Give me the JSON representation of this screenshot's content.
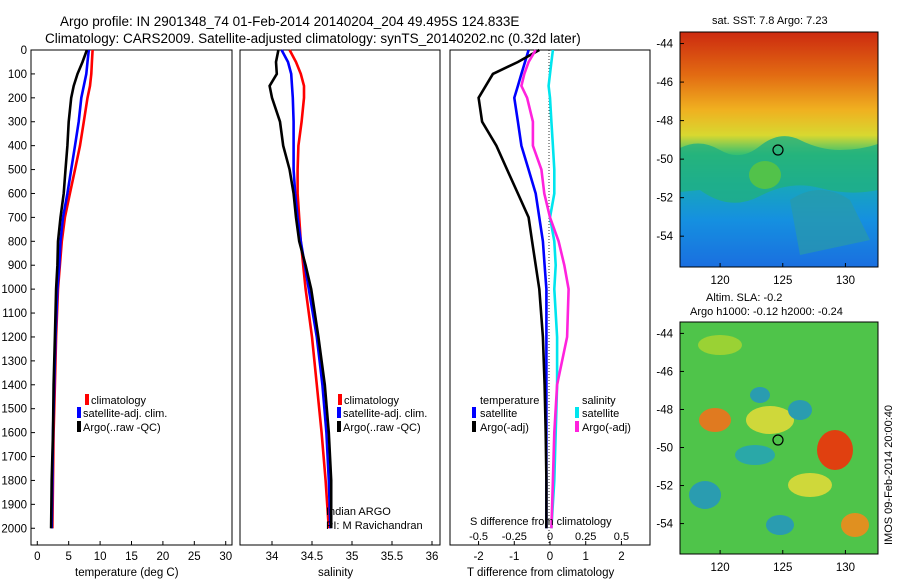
{
  "title_line1": "Argo profile: IN 2901348_74 01-Feb-2014 20140204_204 49.495S 124.833E",
  "title_line2": "Climatology: CARS2009. Satellite-adjusted climatology: synTS_20140202.nc (0.32d later)",
  "colors": {
    "climatology": "#ff0000",
    "satellite": "#0000ff",
    "argo": "#000000",
    "sat_diff_s": "#00e5ee",
    "argo_diff_s": "#ff22dd"
  },
  "chart_data": [
    {
      "type": "line",
      "xlabel": "temperature (deg C)",
      "xlim": [
        -1,
        31
      ],
      "xticks": [
        "0",
        "5",
        "10",
        "15",
        "20",
        "25",
        "30"
      ],
      "ylim": [
        0,
        2070
      ],
      "yticks": [
        "0",
        "100",
        "200",
        "300",
        "400",
        "500",
        "600",
        "700",
        "800",
        "900",
        "1000",
        "1100",
        "1200",
        "1300",
        "1400",
        "1500",
        "1600",
        "1700",
        "1800",
        "1900",
        "2000"
      ],
      "legend": [
        "climatology",
        "satellite-adj. clim.",
        "Argo(..raw -QC)"
      ],
      "depth": [
        0,
        50,
        100,
        150,
        200,
        300,
        400,
        500,
        600,
        700,
        800,
        900,
        1000,
        1200,
        1400,
        1600,
        1800,
        2000
      ],
      "series": [
        {
          "name": "climatology",
          "values": [
            8.8,
            8.7,
            8.6,
            8.4,
            8.0,
            7.4,
            6.8,
            6.0,
            5.2,
            4.4,
            3.9,
            3.6,
            3.3,
            3.0,
            2.8,
            2.6,
            2.5,
            2.4
          ]
        },
        {
          "name": "satellite-adj. clim.",
          "values": [
            8.2,
            8.0,
            7.8,
            7.4,
            7.0,
            6.6,
            6.0,
            5.4,
            4.8,
            4.1,
            3.7,
            3.5,
            3.2,
            2.9,
            2.7,
            2.5,
            2.4,
            2.3
          ]
        },
        {
          "name": "Argo(..raw -QC)",
          "values": [
            7.9,
            7.2,
            6.4,
            5.8,
            5.4,
            5.0,
            4.8,
            4.5,
            4.2,
            3.7,
            3.3,
            3.2,
            3.0,
            2.8,
            2.6,
            2.5,
            2.3,
            2.2
          ]
        }
      ]
    },
    {
      "type": "line",
      "xlabel": "salinity",
      "xlim": [
        33.6,
        36.1
      ],
      "xticks": [
        "34",
        "34.5",
        "35",
        "35.5",
        "36"
      ],
      "legend": [
        "climatology",
        "satellite-adj. clim.",
        "Argo(..raw -QC)"
      ],
      "note": [
        "Indian ARGO",
        "PI: M Ravichandran"
      ],
      "depth": [
        0,
        50,
        100,
        150,
        200,
        300,
        400,
        500,
        600,
        700,
        800,
        900,
        1000,
        1200,
        1400,
        1600,
        1800,
        2000
      ],
      "series": [
        {
          "name": "climatology",
          "values": [
            34.22,
            34.3,
            34.36,
            34.4,
            34.4,
            34.37,
            34.33,
            34.32,
            34.32,
            34.34,
            34.36,
            34.39,
            34.42,
            34.5,
            34.56,
            34.62,
            34.67,
            34.71
          ]
        },
        {
          "name": "satellite-adj. clim.",
          "values": [
            34.12,
            34.2,
            34.24,
            34.25,
            34.26,
            34.27,
            34.27,
            34.27,
            34.29,
            34.32,
            34.36,
            34.41,
            34.46,
            34.56,
            34.63,
            34.68,
            34.71,
            34.73
          ]
        },
        {
          "name": "Argo(..raw -QC)",
          "values": [
            34.08,
            34.05,
            34.06,
            33.97,
            34.0,
            34.1,
            34.14,
            34.22,
            34.27,
            34.3,
            34.34,
            34.42,
            34.49,
            34.58,
            34.66,
            34.71,
            34.74,
            34.74
          ]
        }
      ]
    },
    {
      "type": "line",
      "xlabel": "T difference from climatology",
      "xlabel_top": "S difference from climatology",
      "xlim": [
        -2.8,
        2.8
      ],
      "xticks": [
        "-2",
        "-1",
        "0",
        "1",
        "2"
      ],
      "xticks_top": [
        "-0.5",
        "-0.25",
        "0",
        "0.25",
        "0.5"
      ],
      "legend_temperature": [
        "temperature",
        "satellite",
        "Argo(-adj)"
      ],
      "legend_salinity": [
        "salinity",
        "satellite",
        "Argo(-adj)"
      ],
      "depth": [
        0,
        50,
        100,
        150,
        200,
        300,
        400,
        500,
        600,
        700,
        800,
        900,
        1000,
        1200,
        1400,
        1600,
        1800,
        2000
      ],
      "series": [
        {
          "name": "temperature satellite",
          "values": [
            -0.6,
            -0.7,
            -0.8,
            -0.9,
            -1.0,
            -0.9,
            -0.8,
            -0.6,
            -0.4,
            -0.3,
            -0.2,
            -0.15,
            -0.1,
            -0.1,
            -0.1,
            -0.1,
            -0.1,
            -0.1
          ]
        },
        {
          "name": "temperature Argo(-adj)",
          "values": [
            -0.3,
            -0.9,
            -1.6,
            -1.8,
            -2.0,
            -1.9,
            -1.5,
            -1.2,
            -0.9,
            -0.6,
            -0.5,
            -0.4,
            -0.3,
            -0.2,
            -0.15,
            -0.12,
            -0.1,
            -0.1
          ]
        },
        {
          "name": "salinity satellite",
          "values": [
            0.02,
            0.01,
            0.0,
            -0.01,
            0.0,
            0.01,
            0.02,
            0.03,
            0.03,
            0.0,
            0.03,
            0.04,
            0.03,
            0.05,
            0.05,
            0.04,
            0.03,
            0.01
          ]
        },
        {
          "name": "salinity Argo(-adj)",
          "values": [
            -0.1,
            -0.15,
            -0.18,
            -0.2,
            -0.16,
            -0.12,
            -0.12,
            -0.06,
            -0.04,
            0.0,
            0.06,
            0.1,
            0.13,
            0.12,
            0.05,
            0.03,
            0.02,
            0.01
          ]
        }
      ]
    },
    {
      "type": "heatmap",
      "title": "sat. SST: 7.8 Argo: 7.23",
      "xticks": [
        "120",
        "125",
        "130"
      ],
      "yticks": [
        "-44",
        "-46",
        "-48",
        "-50",
        "-52",
        "-54"
      ],
      "marker": {
        "lon": 124.833,
        "lat": -49.495
      }
    },
    {
      "type": "heatmap",
      "title": [
        "Altim. SLA: -0.2",
        "Argo h1000: -0.12 h2000: -0.24"
      ],
      "xticks": [
        "120",
        "125",
        "130"
      ],
      "yticks": [
        "-44",
        "-46",
        "-48",
        "-50",
        "-52",
        "-54"
      ],
      "side_label": "IMOS 09-Feb-2014 20:00:40",
      "marker": {
        "lon": 124.833,
        "lat": -49.495
      }
    }
  ]
}
